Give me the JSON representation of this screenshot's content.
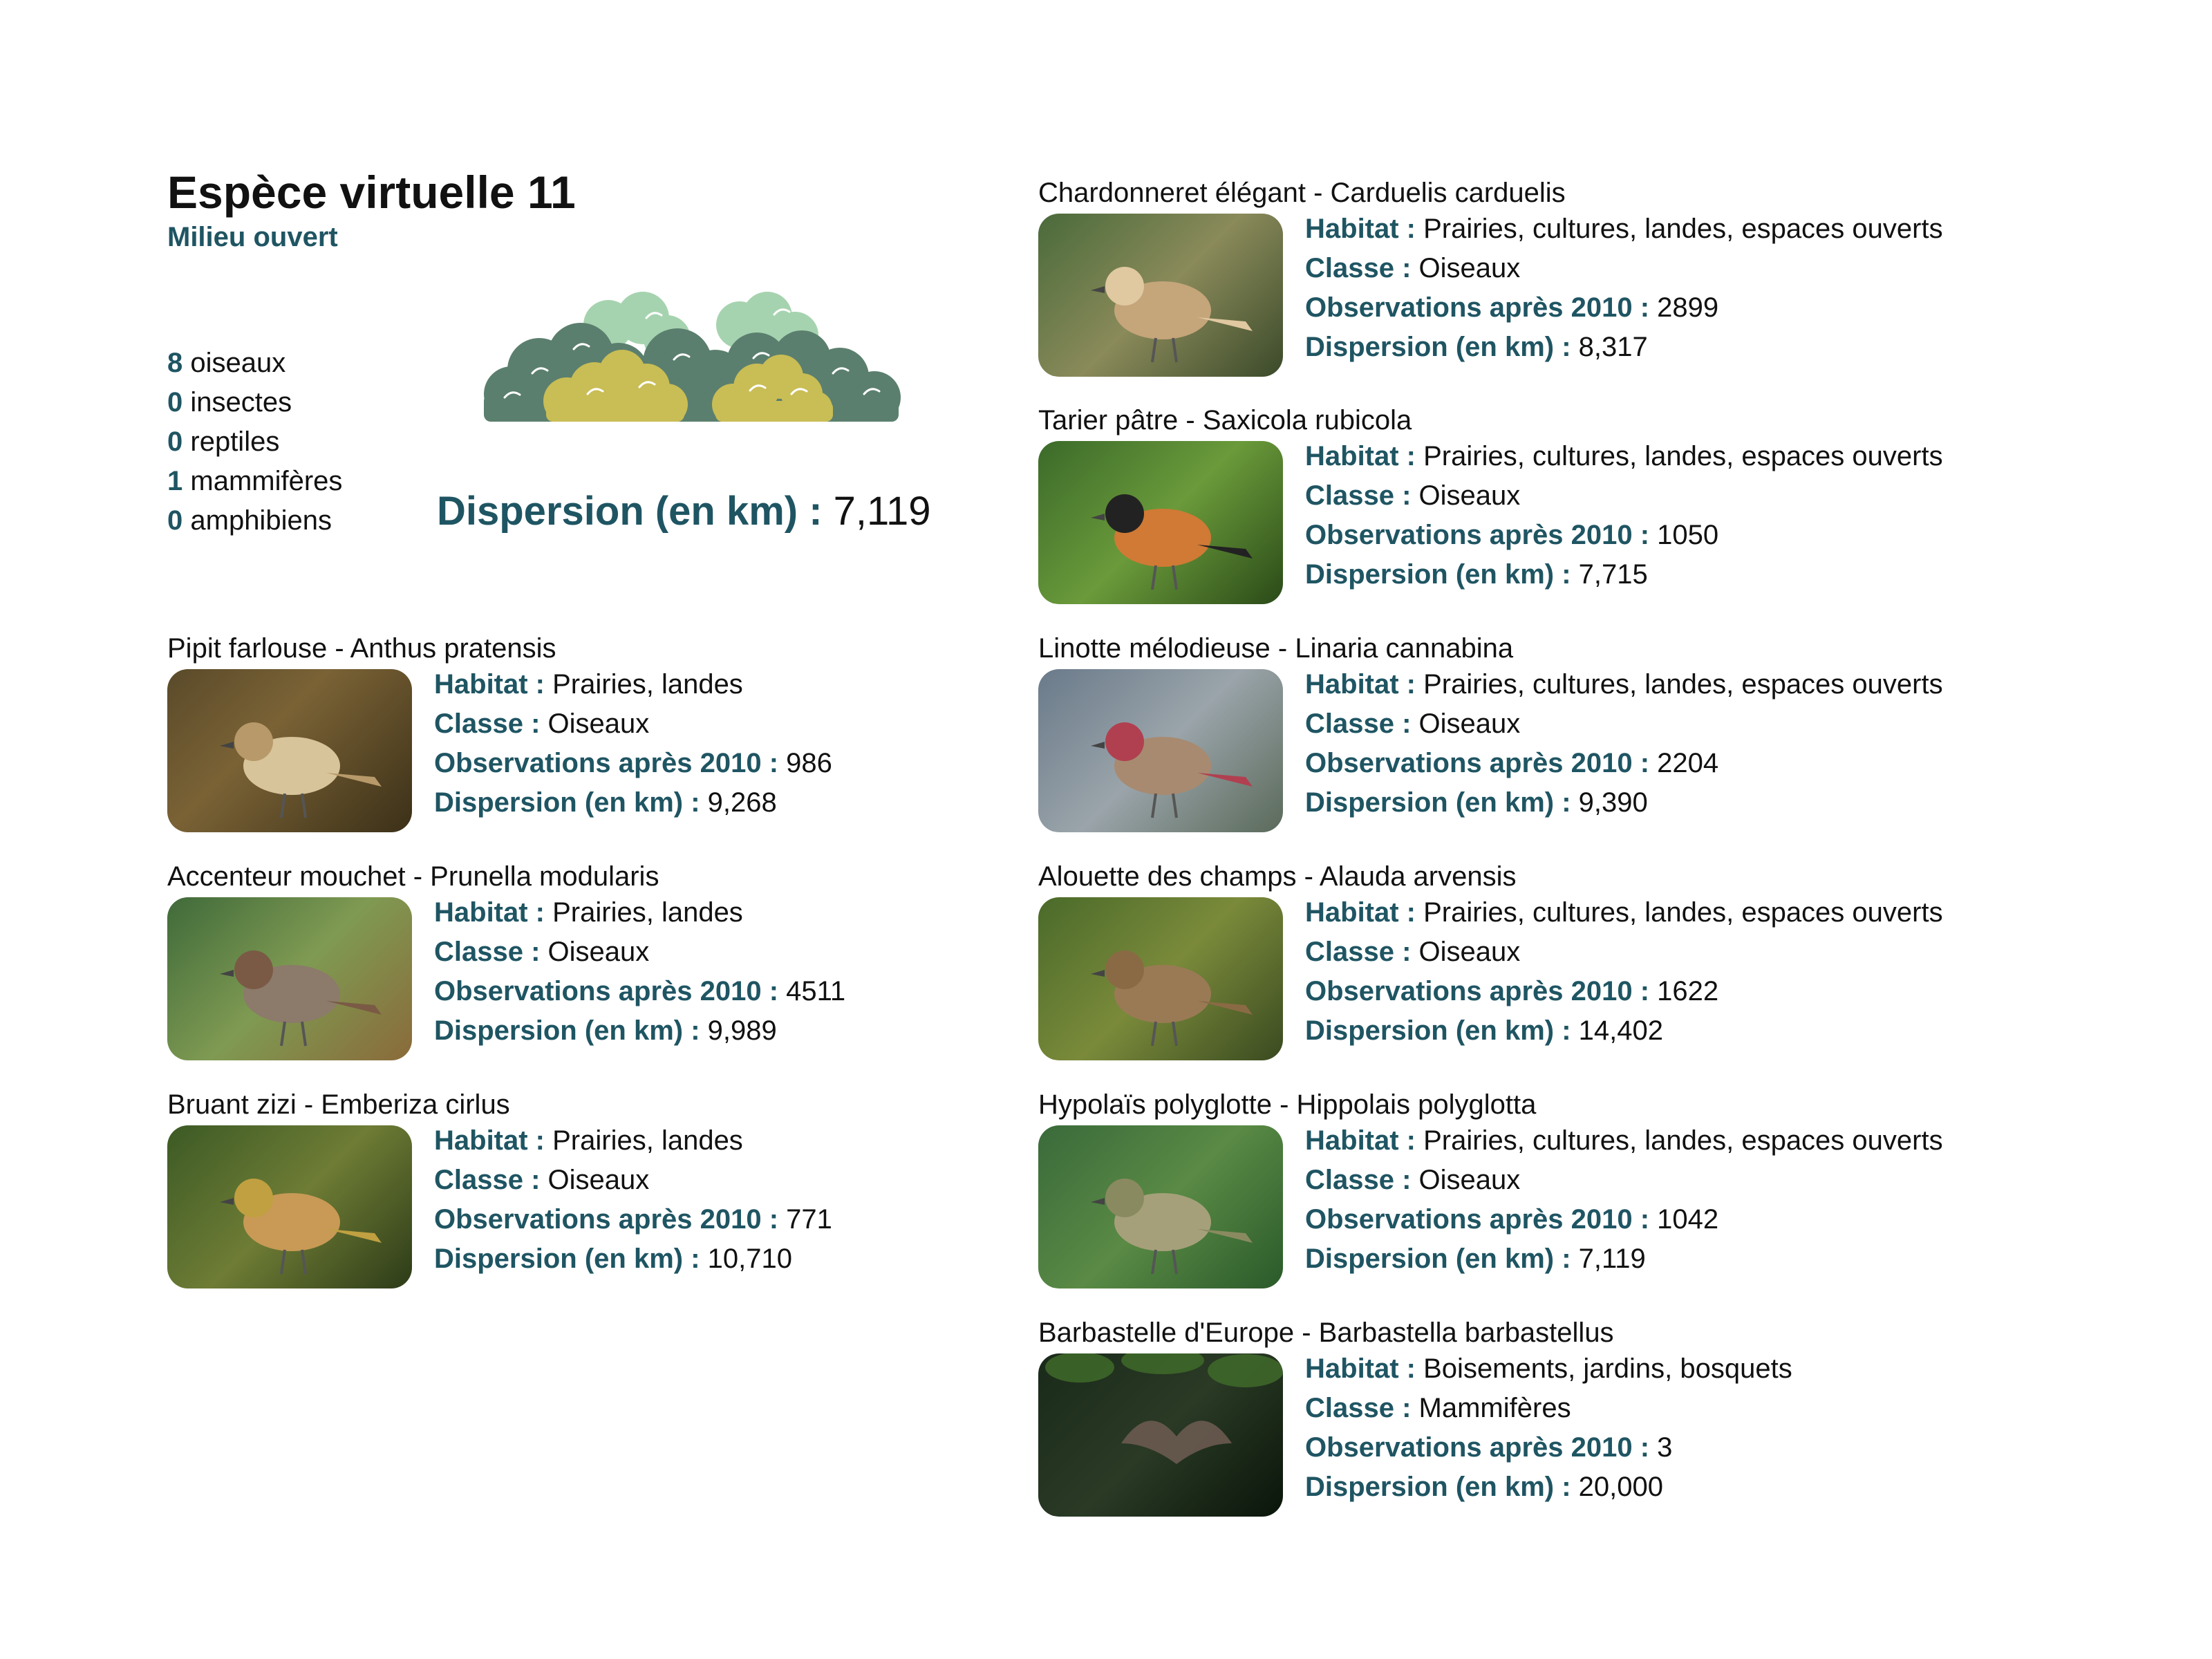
{
  "header": {
    "title": "Espèce virtuelle 11",
    "subtitle": "Milieu ouvert"
  },
  "counts": [
    {
      "n": "8",
      "label": "oiseaux"
    },
    {
      "n": "0",
      "label": "insectes"
    },
    {
      "n": "0",
      "label": "reptiles"
    },
    {
      "n": "1",
      "label": "mammifères"
    },
    {
      "n": "0",
      "label": "amphibiens"
    }
  ],
  "dispersion": {
    "label": "Dispersion (en km) :",
    "value": "7,119"
  },
  "labels": {
    "habitat": "Habitat :",
    "classe": "Classe :",
    "observations": "Observations après 2010 :",
    "dispersion": "Dispersion (en km) :"
  },
  "species": [
    {
      "name": "Pipit farlouse - Anthus pratensis",
      "habitat": "Prairies, landes",
      "classe": "Oiseaux",
      "obs": "986",
      "disp": "9,268",
      "icon": "bird-photo"
    },
    {
      "name": "Accenteur mouchet - Prunella modularis",
      "habitat": "Prairies, landes",
      "classe": "Oiseaux",
      "obs": "4511",
      "disp": "9,989",
      "icon": "bird-photo"
    },
    {
      "name": "Bruant zizi - Emberiza cirlus",
      "habitat": "Prairies, landes",
      "classe": "Oiseaux",
      "obs": "771",
      "disp": "10,710",
      "icon": "bird-photo"
    },
    {
      "name": "Chardonneret élégant - Carduelis carduelis",
      "habitat": "Prairies, cultures, landes, espaces ouverts",
      "classe": "Oiseaux",
      "obs": "2899",
      "disp": "8,317",
      "icon": "bird-photo"
    },
    {
      "name": "Tarier pâtre - Saxicola rubicola",
      "habitat": "Prairies, cultures, landes, espaces ouverts",
      "classe": "Oiseaux",
      "obs": "1050",
      "disp": "7,715",
      "icon": "bird-photo"
    },
    {
      "name": "Linotte mélodieuse - Linaria cannabina",
      "habitat": "Prairies, cultures, landes, espaces ouverts",
      "classe": "Oiseaux",
      "obs": "2204",
      "disp": "9,390",
      "icon": "bird-photo"
    },
    {
      "name": "Alouette des champs - Alauda arvensis",
      "habitat": "Prairies, cultures, landes, espaces ouverts",
      "classe": "Oiseaux",
      "obs": "1622",
      "disp": "14,402",
      "icon": "bird-photo"
    },
    {
      "name": "Hypolaïs polyglotte - Hippolais polyglotta",
      "habitat": "Prairies, cultures, landes, espaces ouverts",
      "classe": "Oiseaux",
      "obs": "1042",
      "disp": "7,119",
      "icon": "bird-photo"
    },
    {
      "name": "Barbastelle d'Europe - Barbastella barbastellus",
      "habitat": "Boisements, jardins, bosquets",
      "classe": "Mammifères",
      "obs": "3",
      "disp": "20,000",
      "icon": "bat-photo"
    }
  ],
  "colors": {
    "accent": "#1f5563",
    "bush_dark": "#5b7f6e",
    "bush_light": "#9fcfaa",
    "bush_yellow": "#c9bd55"
  }
}
